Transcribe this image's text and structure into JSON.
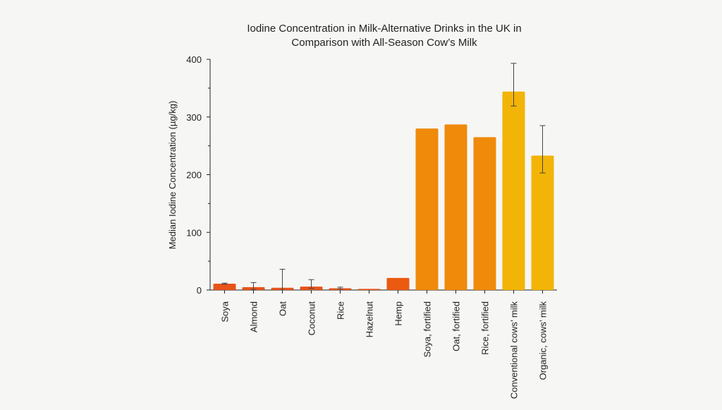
{
  "chart_data": {
    "type": "bar",
    "title_lines": [
      "Iodine Concentration in Milk-Alternative Drinks in the UK in",
      "Comparison with All-Season Cow’s Milk"
    ],
    "ylabel": "Median Iodine Concentration (µg/kg)",
    "xlabel": "",
    "ylim": [
      0,
      400
    ],
    "yticks": [
      0,
      100,
      200,
      300,
      400
    ],
    "grid": false,
    "categories": [
      "Soya",
      "Almond",
      "Oat",
      "Coconut",
      "Rice",
      "Hazelnut",
      "Hemp",
      "Soya, fortified",
      "Oat, fortified",
      "Rice, fortified",
      "Conventional cows’ milk",
      "Organic, cows’ milk"
    ],
    "values": [
      11,
      5,
      4,
      6,
      3,
      2,
      21,
      280,
      287,
      265,
      344,
      233
    ],
    "error_low": [
      10,
      1,
      0,
      3,
      2,
      null,
      null,
      null,
      null,
      null,
      319,
      203
    ],
    "error_high": [
      12,
      13,
      36,
      18,
      5,
      null,
      null,
      null,
      null,
      null,
      393,
      285
    ],
    "colors": [
      "#e8541a",
      "#e8541a",
      "#e8541a",
      "#e8541a",
      "#e8541a",
      "#e8541a",
      "#ea5a10",
      "#ef8a0a",
      "#ef8a0a",
      "#ef8a0a",
      "#f2b406",
      "#f2b406"
    ]
  }
}
